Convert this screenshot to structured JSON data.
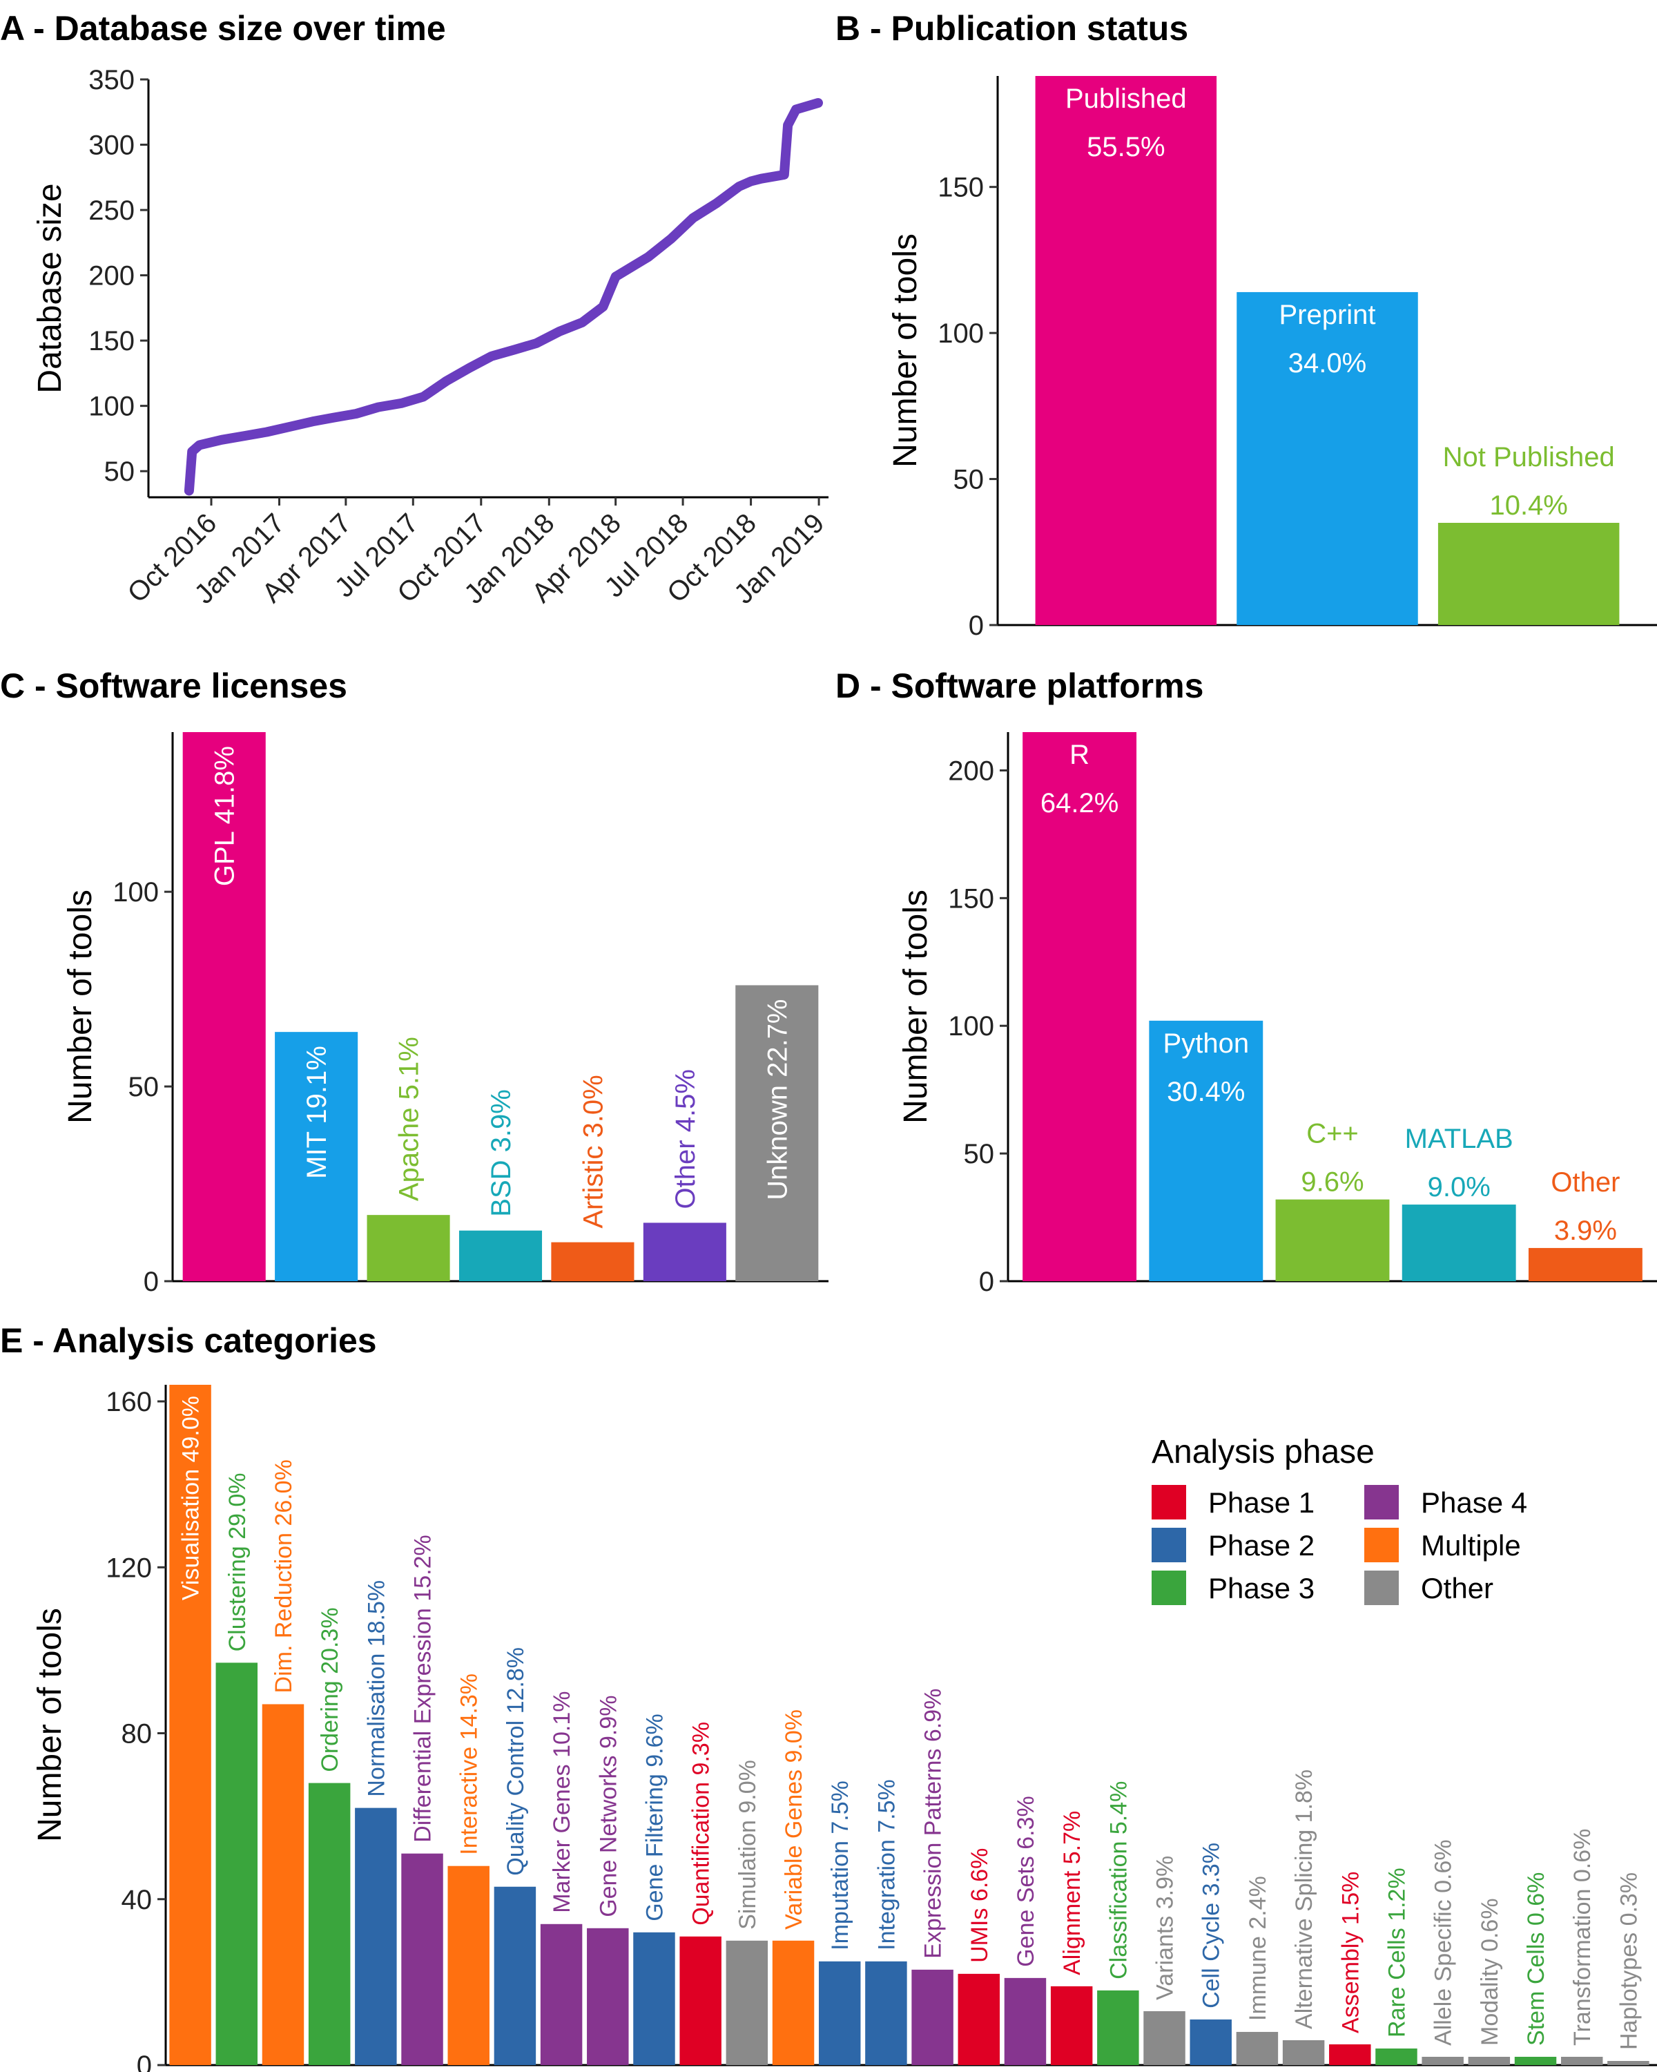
{
  "chart_data": [
    {
      "panel": "A",
      "type": "line",
      "title": "A - Database size over time",
      "ylabel": "Database size",
      "xlabel": "",
      "ylim": [
        30,
        350
      ],
      "yticks": [
        50,
        100,
        150,
        200,
        250,
        300,
        350
      ],
      "xticks": [
        "Oct 2016",
        "Jan 2017",
        "Apr 2017",
        "Jul 2017",
        "Oct 2017",
        "Jan 2018",
        "Apr 2018",
        "Jul 2018",
        "Oct 2018",
        "Jan 2019"
      ],
      "color": "#6a3dbf",
      "series": [
        {
          "x": [
            "2016-09-01",
            "2016-09-05",
            "2016-09-15",
            "2016-10-15",
            "2016-11-15",
            "2016-12-15",
            "2017-01-15",
            "2017-02-15",
            "2017-03-15",
            "2017-04-15",
            "2017-05-15",
            "2017-06-15",
            "2017-07-15",
            "2017-08-15",
            "2017-09-15",
            "2017-10-15",
            "2017-11-15",
            "2017-12-15",
            "2018-01-15",
            "2018-02-15",
            "2018-03-15",
            "2018-04-01",
            "2018-05-15",
            "2018-06-15",
            "2018-07-15",
            "2018-08-15",
            "2018-09-15",
            "2018-10-01",
            "2018-10-15",
            "2018-11-15",
            "2018-11-20",
            "2018-12-01",
            "2018-12-31"
          ],
          "values": [
            35,
            65,
            70,
            74,
            77,
            80,
            84,
            88,
            91,
            94,
            99,
            102,
            107,
            119,
            129,
            138,
            143,
            148,
            157,
            164,
            176,
            199,
            214,
            228,
            244,
            255,
            268,
            272,
            274,
            277,
            315,
            327,
            332
          ]
        }
      ]
    },
    {
      "panel": "B",
      "type": "bar",
      "title": "B - Publication status",
      "ylabel": "Number of tools",
      "xlabel": "",
      "ylim": [
        0,
        188
      ],
      "yticks": [
        0,
        50,
        100,
        150
      ],
      "categories": [
        "Published",
        "Preprint",
        "Not Published"
      ],
      "values": [
        188,
        114,
        35
      ],
      "percents": [
        "55.5%",
        "34.0%",
        "10.4%"
      ],
      "colors": [
        "#e6007e",
        "#169fe8",
        "#7cbd31"
      ],
      "label_colors": [
        "#ffffff",
        "#ffffff",
        "#7cbd31"
      ]
    },
    {
      "panel": "C",
      "type": "bar",
      "title": "C - Software licenses",
      "ylabel": "Number of tools",
      "xlabel": "",
      "ylim": [
        0,
        141
      ],
      "yticks": [
        0,
        50,
        100
      ],
      "categories": [
        "GPL",
        "MIT",
        "Apache",
        "BSD",
        "Artistic",
        "Other",
        "Unknown"
      ],
      "values": [
        141,
        64,
        17,
        13,
        10,
        15,
        76
      ],
      "percents": [
        "41.8%",
        "19.1%",
        "5.1%",
        "3.9%",
        "3.0%",
        "4.5%",
        "22.7%"
      ],
      "colors": [
        "#e6007e",
        "#169fe8",
        "#7cbd31",
        "#17a8b8",
        "#ef5b18",
        "#6a3dbf",
        "#8a8a8a"
      ],
      "label_colors": [
        "#ffffff",
        "#ffffff",
        "#7cbd31",
        "#17a8b8",
        "#ef5b18",
        "#6a3dbf",
        "#ffffff"
      ]
    },
    {
      "panel": "D",
      "type": "bar",
      "title": "D - Software platforms",
      "ylabel": "Number of tools",
      "xlabel": "",
      "ylim": [
        0,
        215
      ],
      "yticks": [
        0,
        50,
        100,
        150,
        200
      ],
      "categories": [
        "R",
        "Python",
        "C++",
        "MATLAB",
        "Other"
      ],
      "values": [
        215,
        102,
        32,
        30,
        13
      ],
      "percents": [
        "64.2%",
        "30.4%",
        "9.6%",
        "9.0%",
        "3.9%"
      ],
      "colors": [
        "#e6007e",
        "#169fe8",
        "#7cbd31",
        "#17a8b8",
        "#ef5b18"
      ],
      "label_colors": [
        "#ffffff",
        "#ffffff",
        "#7cbd31",
        "#17a8b8",
        "#ef5b18"
      ]
    },
    {
      "panel": "E",
      "type": "bar",
      "title": "E - Analysis categories",
      "ylabel": "Number of tools",
      "xlabel": "",
      "ylim": [
        0,
        164
      ],
      "yticks": [
        0,
        40,
        80,
        120,
        160
      ],
      "legend_title": "Analysis phase",
      "legend_position": "top-right",
      "legend": [
        {
          "name": "Phase 1",
          "color": "#df0024"
        },
        {
          "name": "Phase 4",
          "color": "#86358f"
        },
        {
          "name": "Phase 2",
          "color": "#2d67a8"
        },
        {
          "name": "Multiple",
          "color": "#ff7010"
        },
        {
          "name": "Phase 3",
          "color": "#3aa53d"
        },
        {
          "name": "Other",
          "color": "#8a8a8a"
        }
      ],
      "categories": [
        "Visualisation",
        "Clustering",
        "Dim. Reduction",
        "Ordering",
        "Normalisation",
        "Differential Expression",
        "Interactive",
        "Quality Control",
        "Marker Genes",
        "Gene Networks",
        "Gene Filtering",
        "Quantification",
        "Simulation",
        "Variable Genes",
        "Imputation",
        "Integration",
        "Expression Patterns",
        "UMIs",
        "Gene Sets",
        "Alignment",
        "Classification",
        "Variants",
        "Cell Cycle",
        "Immune",
        "Alternative Splicing",
        "Assembly",
        "Rare Cells",
        "Allele Specific",
        "Modality",
        "Stem Cells",
        "Transformation",
        "Haplotypes"
      ],
      "values": [
        164,
        97,
        87,
        68,
        62,
        51,
        48,
        43,
        34,
        33,
        32,
        31,
        30,
        30,
        25,
        25,
        23,
        22,
        21,
        19,
        18,
        13,
        11,
        8,
        6,
        5,
        4,
        2,
        2,
        2,
        2,
        1
      ],
      "percents": [
        "49.0%",
        "29.0%",
        "26.0%",
        "20.3%",
        "18.5%",
        "15.2%",
        "14.3%",
        "12.8%",
        "10.1%",
        "9.9%",
        "9.6%",
        "9.3%",
        "9.0%",
        "9.0%",
        "7.5%",
        "7.5%",
        "6.9%",
        "6.6%",
        "6.3%",
        "5.7%",
        "5.4%",
        "3.9%",
        "3.3%",
        "2.4%",
        "1.8%",
        "1.5%",
        "1.2%",
        "0.6%",
        "0.6%",
        "0.6%",
        "0.6%",
        "0.3%"
      ],
      "phases": [
        "Multiple",
        "Phase 3",
        "Multiple",
        "Phase 3",
        "Phase 2",
        "Phase 4",
        "Multiple",
        "Phase 2",
        "Phase 4",
        "Phase 4",
        "Phase 2",
        "Phase 1",
        "Other",
        "Multiple",
        "Phase 2",
        "Phase 2",
        "Phase 4",
        "Phase 1",
        "Phase 4",
        "Phase 1",
        "Phase 3",
        "Other",
        "Phase 2",
        "Other",
        "Other",
        "Phase 1",
        "Phase 3",
        "Other",
        "Other",
        "Phase 3",
        "Other",
        "Other"
      ]
    }
  ]
}
